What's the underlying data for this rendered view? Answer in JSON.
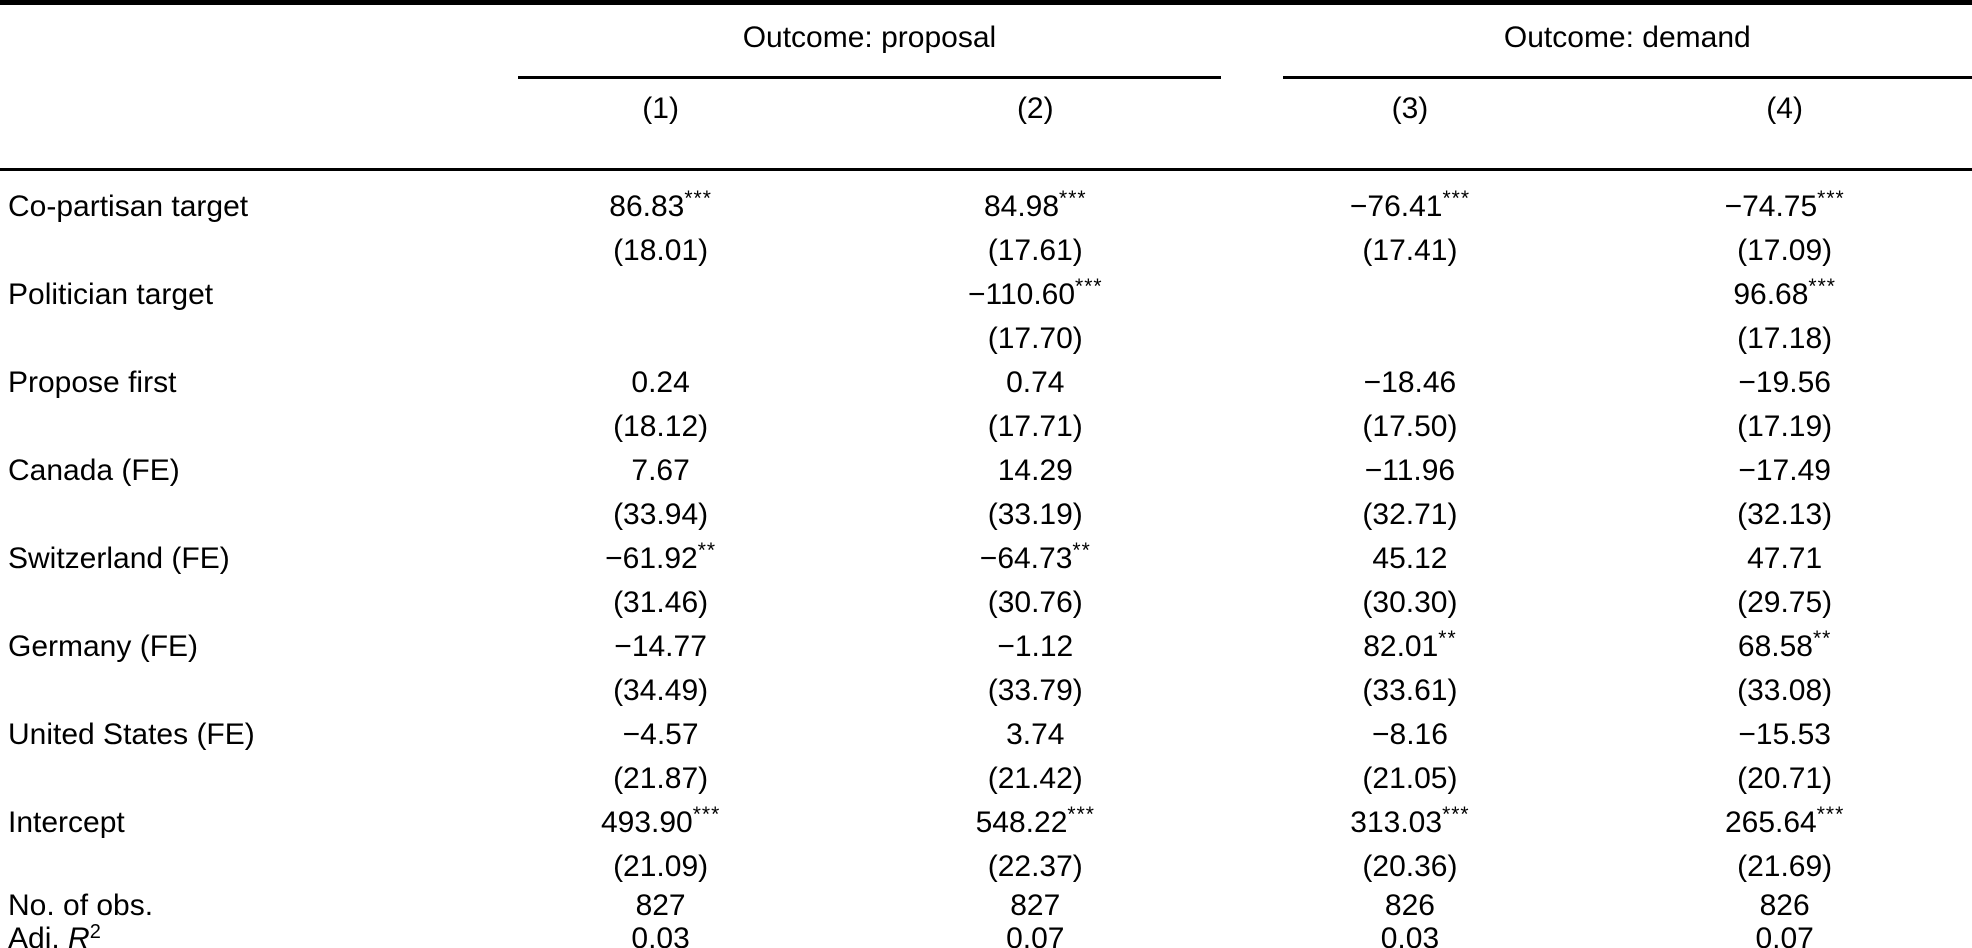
{
  "table": {
    "col_groups": [
      {
        "label": "Outcome: proposal"
      },
      {
        "label": "Outcome: demand"
      }
    ],
    "col_headers": [
      "(1)",
      "(2)",
      "(3)",
      "(4)"
    ],
    "rows": [
      {
        "label": "Co-partisan target",
        "cells": [
          {
            "coef": "86.83",
            "stars": "***",
            "se": "(18.01)"
          },
          {
            "coef": "84.98",
            "stars": "***",
            "se": "(17.61)"
          },
          {
            "coef": "−76.41",
            "stars": "***",
            "se": "(17.41)"
          },
          {
            "coef": "−74.75",
            "stars": "***",
            "se": "(17.09)"
          }
        ]
      },
      {
        "label": "Politician target",
        "cells": [
          {
            "coef": "",
            "stars": "",
            "se": ""
          },
          {
            "coef": "−110.60",
            "stars": "***",
            "se": "(17.70)"
          },
          {
            "coef": "",
            "stars": "",
            "se": ""
          },
          {
            "coef": "96.68",
            "stars": "***",
            "se": "(17.18)"
          }
        ]
      },
      {
        "label": "Propose first",
        "cells": [
          {
            "coef": "0.24",
            "stars": "",
            "se": "(18.12)"
          },
          {
            "coef": "0.74",
            "stars": "",
            "se": "(17.71)"
          },
          {
            "coef": "−18.46",
            "stars": "",
            "se": "(17.50)"
          },
          {
            "coef": "−19.56",
            "stars": "",
            "se": "(17.19)"
          }
        ]
      },
      {
        "label": "Canada (FE)",
        "cells": [
          {
            "coef": "7.67",
            "stars": "",
            "se": "(33.94)"
          },
          {
            "coef": "14.29",
            "stars": "",
            "se": "(33.19)"
          },
          {
            "coef": "−11.96",
            "stars": "",
            "se": "(32.71)"
          },
          {
            "coef": "−17.49",
            "stars": "",
            "se": "(32.13)"
          }
        ]
      },
      {
        "label": "Switzerland (FE)",
        "cells": [
          {
            "coef": "−61.92",
            "stars": "**",
            "se": "(31.46)"
          },
          {
            "coef": "−64.73",
            "stars": "**",
            "se": "(30.76)"
          },
          {
            "coef": "45.12",
            "stars": "",
            "se": "(30.30)"
          },
          {
            "coef": "47.71",
            "stars": "",
            "se": "(29.75)"
          }
        ]
      },
      {
        "label": "Germany (FE)",
        "cells": [
          {
            "coef": "−14.77",
            "stars": "",
            "se": "(34.49)"
          },
          {
            "coef": "−1.12",
            "stars": "",
            "se": "(33.79)"
          },
          {
            "coef": "82.01",
            "stars": "**",
            "se": "(33.61)"
          },
          {
            "coef": "68.58",
            "stars": "**",
            "se": "(33.08)"
          }
        ]
      },
      {
        "label": "United States (FE)",
        "cells": [
          {
            "coef": "−4.57",
            "stars": "",
            "se": "(21.87)"
          },
          {
            "coef": "3.74",
            "stars": "",
            "se": "(21.42)"
          },
          {
            "coef": "−8.16",
            "stars": "",
            "se": "(21.05)"
          },
          {
            "coef": "−15.53",
            "stars": "",
            "se": "(20.71)"
          }
        ]
      },
      {
        "label": "Intercept",
        "cells": [
          {
            "coef": "493.90",
            "stars": "***",
            "se": "(21.09)"
          },
          {
            "coef": "548.22",
            "stars": "***",
            "se": "(22.37)"
          },
          {
            "coef": "313.03",
            "stars": "***",
            "se": "(20.36)"
          },
          {
            "coef": "265.64",
            "stars": "***",
            "se": "(21.69)"
          }
        ]
      }
    ],
    "stat_rows": [
      {
        "label": "No. of obs.",
        "values": [
          "827",
          "827",
          "826",
          "826"
        ]
      },
      {
        "label_prefix": "Adj. ",
        "label_var": "R",
        "label_sup": "2",
        "values": [
          "0.03",
          "0.07",
          "0.03",
          "0.07"
        ]
      }
    ]
  }
}
